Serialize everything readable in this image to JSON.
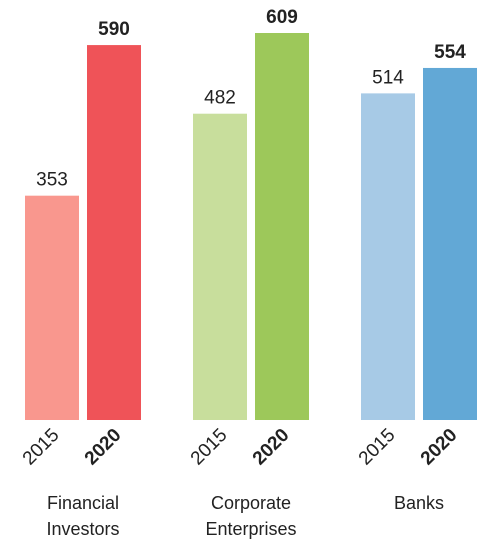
{
  "chart_data": {
    "type": "bar",
    "categories": [
      "Financial Investors",
      "Corporate Enterprises",
      "Banks"
    ],
    "series": [
      {
        "name": "2015",
        "values": [
          353,
          482,
          514
        ],
        "colors": [
          "#f9978e",
          "#c8de9c",
          "#a7cae6"
        ]
      },
      {
        "name": "2020",
        "values": [
          590,
          609,
          554
        ],
        "colors": [
          "#ef5358",
          "#9dc85a",
          "#62a8d6"
        ]
      }
    ]
  }
}
